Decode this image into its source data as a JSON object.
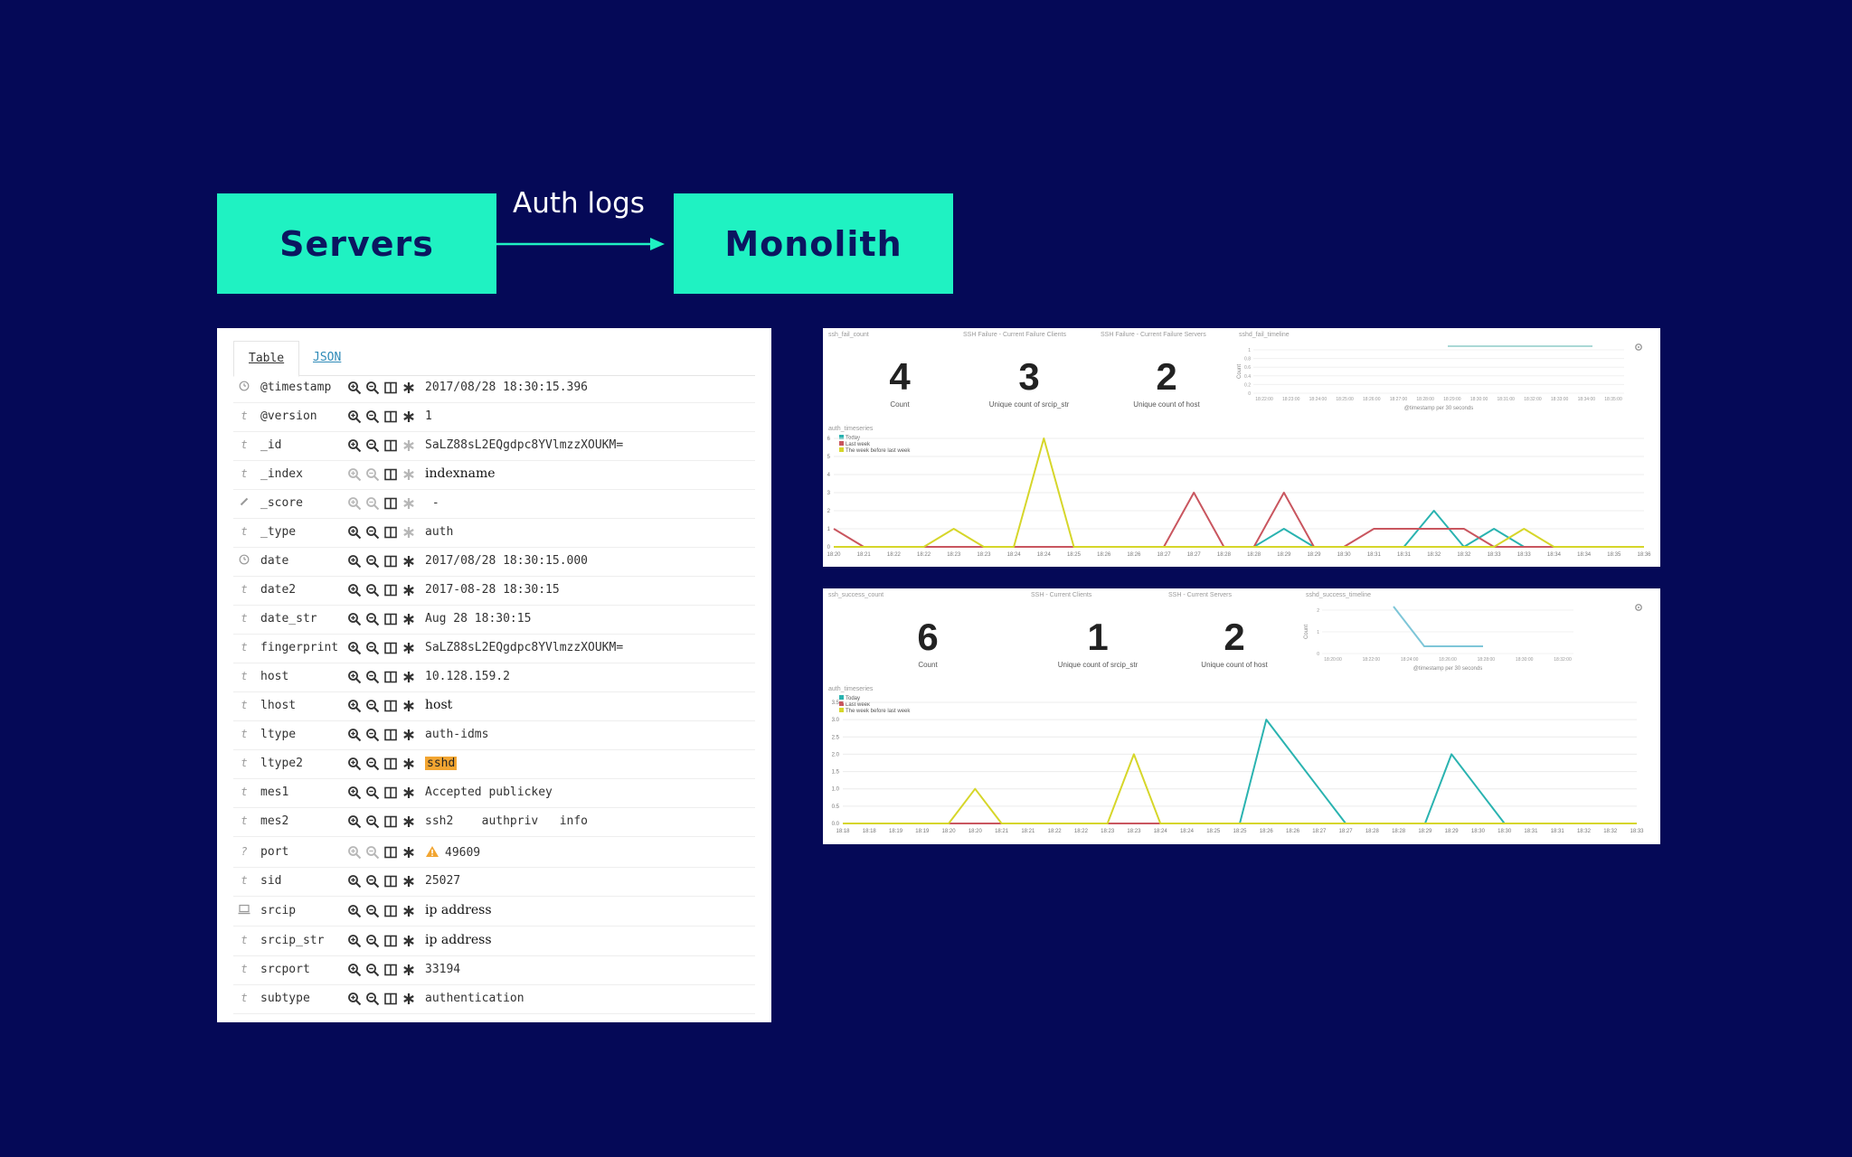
{
  "flow": {
    "source": "Servers",
    "edge_label": "Auth logs",
    "target": "Monolith",
    "colors": {
      "box": "#1ff2c2",
      "arrow": "#1ff2c2",
      "background": "#050957"
    }
  },
  "document": {
    "tabs": [
      "Table",
      "JSON"
    ],
    "active_tab": "Table",
    "fields": [
      {
        "type_icon": "clock-icon",
        "name": "@timestamp",
        "value": "2017/08/28 18:30:15.396",
        "filters_enabled": true,
        "exists_enabled": true
      },
      {
        "type_icon": "t",
        "name": "@version",
        "value": "1",
        "filters_enabled": true,
        "exists_enabled": true
      },
      {
        "type_icon": "t",
        "name": "_id",
        "value": "SaLZ88sL2EQgdpc8YVlmzzXOUKM=",
        "filters_enabled": true,
        "exists_enabled": false
      },
      {
        "type_icon": "t",
        "name": "_index",
        "value": "indexname",
        "filters_enabled": false,
        "exists_enabled": false,
        "serif": true
      },
      {
        "type_icon": "pencil-icon",
        "name": "_score",
        "value": " -",
        "filters_enabled": false,
        "exists_enabled": false
      },
      {
        "type_icon": "t",
        "name": "_type",
        "value": "auth",
        "filters_enabled": true,
        "exists_enabled": false
      },
      {
        "type_icon": "clock-icon",
        "name": "date",
        "value": "2017/08/28 18:30:15.000",
        "filters_enabled": true,
        "exists_enabled": true
      },
      {
        "type_icon": "t",
        "name": "date2",
        "value": "2017-08-28 18:30:15",
        "filters_enabled": true,
        "exists_enabled": true
      },
      {
        "type_icon": "t",
        "name": "date_str",
        "value": "Aug 28 18:30:15",
        "filters_enabled": true,
        "exists_enabled": true
      },
      {
        "type_icon": "t",
        "name": "fingerprint",
        "value": "SaLZ88sL2EQgdpc8YVlmzzXOUKM=",
        "filters_enabled": true,
        "exists_enabled": true
      },
      {
        "type_icon": "t",
        "name": "host",
        "value": "10.128.159.2",
        "filters_enabled": true,
        "exists_enabled": true
      },
      {
        "type_icon": "t",
        "name": "lhost",
        "value": "host",
        "filters_enabled": true,
        "exists_enabled": true,
        "serif": true
      },
      {
        "type_icon": "t",
        "name": "ltype",
        "value": "auth-idms",
        "filters_enabled": true,
        "exists_enabled": true
      },
      {
        "type_icon": "t",
        "name": "ltype2",
        "value": "sshd",
        "filters_enabled": true,
        "exists_enabled": true,
        "highlight": true
      },
      {
        "type_icon": "t",
        "name": "mes1",
        "value": "Accepted publickey",
        "filters_enabled": true,
        "exists_enabled": true
      },
      {
        "type_icon": "t",
        "name": "mes2",
        "value": "ssh2    authpriv   info",
        "filters_enabled": true,
        "exists_enabled": true
      },
      {
        "type_icon": "?",
        "name": "port",
        "value": "49609",
        "filters_enabled": false,
        "exists_enabled": true,
        "warning": true
      },
      {
        "type_icon": "t",
        "name": "sid",
        "value": "25027",
        "filters_enabled": true,
        "exists_enabled": true
      },
      {
        "type_icon": "computer-icon",
        "name": "srcip",
        "value": "ip address",
        "filters_enabled": true,
        "exists_enabled": true,
        "serif": true
      },
      {
        "type_icon": "t",
        "name": "srcip_str",
        "value": "ip address",
        "filters_enabled": true,
        "exists_enabled": true,
        "serif": true
      },
      {
        "type_icon": "t",
        "name": "srcport",
        "value": "33194",
        "filters_enabled": true,
        "exists_enabled": true
      },
      {
        "type_icon": "t",
        "name": "subtype",
        "value": "authentication",
        "filters_enabled": true,
        "exists_enabled": true
      }
    ]
  },
  "dashboards": {
    "failure": {
      "panel_titles": [
        "ssh_fail_count",
        "SSH Failure - Current Failure Clients",
        "SSH Failure - Current Failure Servers",
        "sshd_fail_timeline"
      ],
      "metrics": [
        {
          "value": "4",
          "label": "Count"
        },
        {
          "value": "3",
          "label": "Unique count of srcip_str"
        },
        {
          "value": "2",
          "label": "Unique count of host"
        }
      ],
      "timeline": {
        "ylabel": "Count",
        "yticks": [
          "1",
          "0.8",
          "0.6",
          "0.4",
          "0.2",
          "0"
        ],
        "xticks": [
          "18:22:00",
          "18:23:00",
          "18:24:00",
          "18:25:00",
          "18:26:00",
          "18:27:00",
          "18:28:00",
          "18:29:00",
          "18:30:00",
          "18:31:00",
          "18:32:00",
          "18:33:00",
          "18:34:00",
          "18:35:00"
        ],
        "xlabel": "@timestamp per 30 seconds"
      },
      "timeseries": {
        "title": "auth_timeseries",
        "legend": [
          "Today",
          "Last week",
          "The week before last week"
        ],
        "colors": [
          "#2ab3b0",
          "#c9565f",
          "#d6d62a"
        ],
        "ylim": [
          0,
          6
        ],
        "yticks": [
          "0",
          "1",
          "2",
          "3",
          "4",
          "5",
          "6"
        ],
        "xticks": [
          "18:20",
          "18:21",
          "18:22",
          "18:22",
          "18:23",
          "18:23",
          "18:24",
          "18:24",
          "18:25",
          "18:26",
          "18:26",
          "18:27",
          "18:27",
          "18:28",
          "18:28",
          "18:29",
          "18:29",
          "18:30",
          "18:31",
          "18:31",
          "18:32",
          "18:32",
          "18:33",
          "18:33",
          "18:34",
          "18:34",
          "18:35",
          "18:36"
        ],
        "series": [
          {
            "name": "Today",
            "values": [
              0,
              0,
              0,
              0,
              0,
              0,
              0,
              0,
              0,
              0,
              0,
              0,
              0,
              0,
              0,
              1,
              0,
              0,
              0,
              0,
              2,
              0,
              1,
              0,
              0,
              0,
              0,
              0
            ]
          },
          {
            "name": "Last week",
            "values": [
              1,
              0,
              0,
              0,
              0,
              0,
              0,
              0,
              0,
              0,
              0,
              0,
              3,
              0,
              0,
              3,
              0,
              0,
              1,
              1,
              1,
              1,
              0,
              0,
              0,
              0,
              0,
              0
            ]
          },
          {
            "name": "The week before last week",
            "values": [
              0,
              0,
              0,
              0,
              1,
              0,
              0,
              6,
              0,
              0,
              0,
              0,
              0,
              0,
              0,
              0,
              0,
              0,
              0,
              0,
              0,
              0,
              0,
              1,
              0,
              0,
              0,
              0
            ]
          }
        ]
      }
    },
    "success": {
      "panel_titles": [
        "ssh_success_count",
        "SSH - Current Clients",
        "SSH - Current Servers",
        "sshd_success_timeline"
      ],
      "metrics": [
        {
          "value": "6",
          "label": "Count"
        },
        {
          "value": "1",
          "label": "Unique count of srcip_str"
        },
        {
          "value": "2",
          "label": "Unique count of host"
        }
      ],
      "timeline": {
        "ylabel": "Count",
        "yticks": [
          "2",
          "1",
          "0"
        ],
        "xticks": [
          "18:20:00",
          "18:22:00",
          "18:24:00",
          "18:26:00",
          "18:28:00",
          "18:30:00",
          "18:32:00"
        ],
        "xlabel": "@timestamp per 30 seconds"
      },
      "timeseries": {
        "title": "auth_timeseries",
        "legend": [
          "Today",
          "Last week",
          "The week before last week"
        ],
        "colors": [
          "#2ab3b0",
          "#c9565f",
          "#d6d62a"
        ],
        "ylim": [
          0,
          3.5
        ],
        "yticks": [
          "0.0",
          "0.5",
          "1.0",
          "1.5",
          "2.0",
          "2.5",
          "3.0",
          "3.5"
        ],
        "xticks": [
          "18:18",
          "18:18",
          "18:19",
          "18:19",
          "18:20",
          "18:20",
          "18:21",
          "18:21",
          "18:22",
          "18:22",
          "18:23",
          "18:23",
          "18:24",
          "18:24",
          "18:25",
          "18:25",
          "18:26",
          "18:26",
          "18:27",
          "18:27",
          "18:28",
          "18:28",
          "18:29",
          "18:29",
          "18:30",
          "18:30",
          "18:31",
          "18:31",
          "18:32",
          "18:32",
          "18:33"
        ],
        "series": [
          {
            "name": "Today",
            "values": [
              0,
              0,
              0,
              0,
              0,
              0,
              0,
              0,
              0,
              0,
              0,
              0,
              0,
              0,
              0,
              0,
              3,
              2,
              1,
              0,
              0,
              0,
              0,
              2,
              1,
              0,
              0,
              0,
              0,
              0,
              0
            ]
          },
          {
            "name": "Last week",
            "values": [
              0,
              0,
              0,
              0,
              0,
              0,
              0,
              0,
              0,
              0,
              0,
              0,
              0,
              0,
              0,
              0,
              0,
              0,
              0,
              0,
              0,
              0,
              0,
              0,
              0,
              0,
              0,
              0,
              0,
              0,
              0
            ]
          },
          {
            "name": "The week before last week",
            "values": [
              0,
              0,
              0,
              0,
              0,
              1,
              0,
              0,
              0,
              0,
              0,
              2,
              0,
              0,
              0,
              0,
              0,
              0,
              0,
              0,
              0,
              0,
              0,
              0,
              0,
              0,
              0,
              0,
              0,
              0,
              0
            ]
          }
        ]
      }
    }
  }
}
